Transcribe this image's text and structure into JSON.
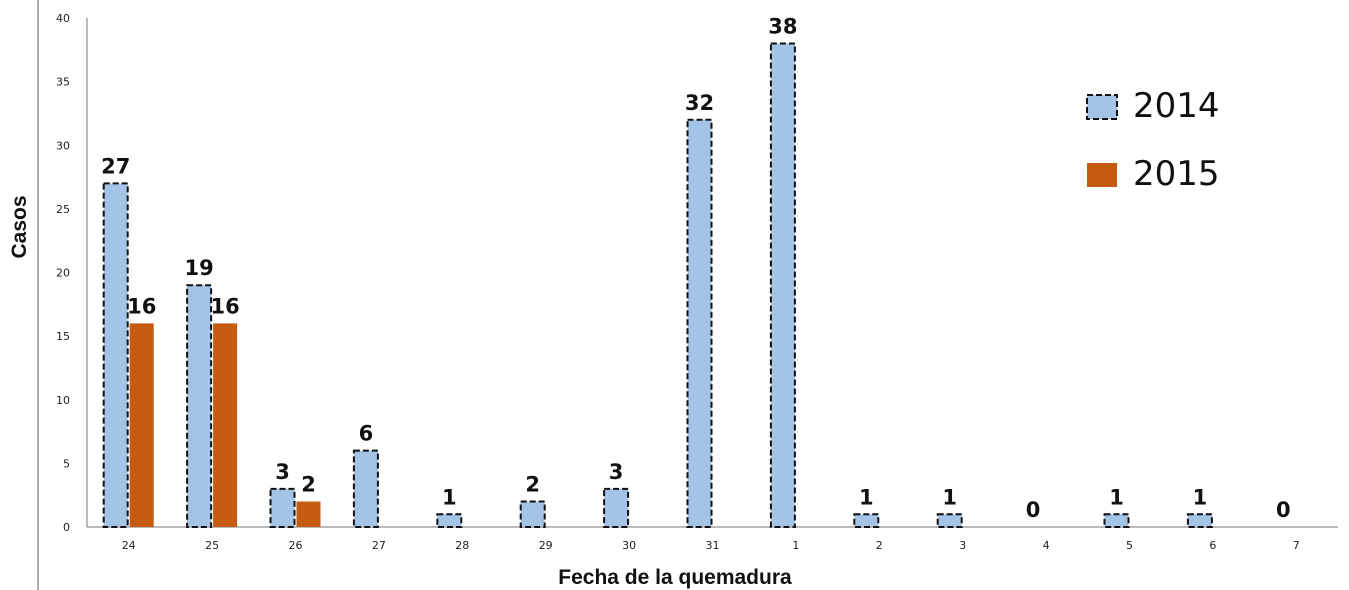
{
  "chart_data": {
    "type": "bar",
    "xlabel": "Fecha de la quemadura",
    "ylabel": "Casos",
    "ylim": [
      0,
      40
    ],
    "yticks": [
      0,
      5,
      10,
      15,
      20,
      25,
      30,
      35,
      40
    ],
    "categories": [
      "24",
      "25",
      "26",
      "27",
      "28",
      "29",
      "30",
      "31",
      "1",
      "2",
      "3",
      "4",
      "5",
      "6",
      "7"
    ],
    "series": [
      {
        "name": "2014",
        "color": "#a3c4e6",
        "values": [
          27,
          19,
          3,
          6,
          1,
          2,
          3,
          32,
          38,
          1,
          1,
          0,
          1,
          1,
          0
        ]
      },
      {
        "name": "2015",
        "color": "#c55a11",
        "values": [
          16,
          16,
          2,
          null,
          null,
          null,
          null,
          null,
          null,
          null,
          null,
          null,
          null,
          null,
          null
        ]
      }
    ],
    "legend": "top-right",
    "grid": false
  }
}
